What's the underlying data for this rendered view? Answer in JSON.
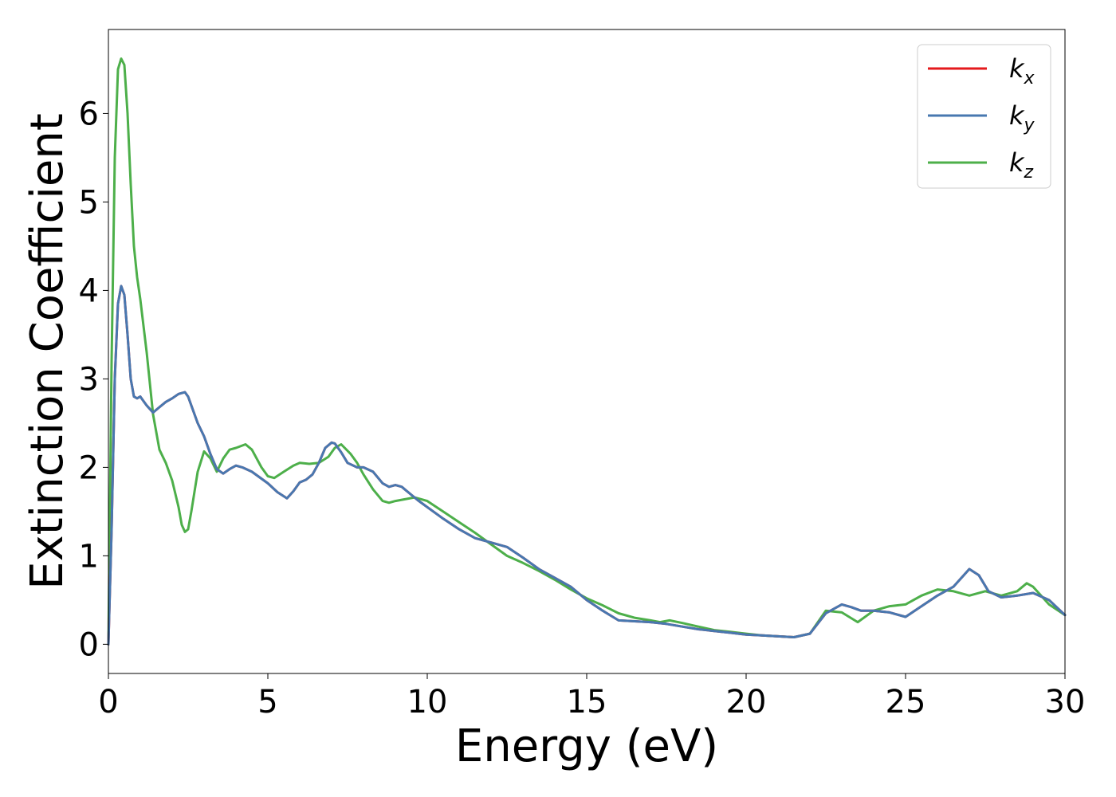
{
  "chart_data": {
    "type": "line",
    "title": "",
    "xlabel": "Energy (eV)",
    "ylabel": "Extinction Coefficient",
    "xlim": [
      0,
      30
    ],
    "ylim": [
      -0.33,
      6.95
    ],
    "xticks": [
      0,
      5,
      10,
      15,
      20,
      25,
      30
    ],
    "xtick_labels": [
      "0",
      "5",
      "10",
      "15",
      "20",
      "25",
      "30"
    ],
    "yticks": [
      0,
      1,
      2,
      3,
      4,
      5,
      6
    ],
    "ytick_labels": [
      "0",
      "1",
      "2",
      "3",
      "4",
      "5",
      "6"
    ],
    "grid": false,
    "legend_position": "top-right",
    "series": [
      {
        "name": "k",
        "subscript": "x",
        "color": "#e41a1c",
        "x": [
          0,
          0.1,
          0.2,
          0.3,
          0.4,
          0.5,
          0.6,
          0.7,
          0.8,
          0.9,
          1.0,
          1.1,
          1.2,
          1.4,
          1.6,
          1.8,
          2.0,
          2.2,
          2.4,
          2.5,
          2.6,
          2.8,
          3.0,
          3.2,
          3.4,
          3.6,
          3.8,
          4.0,
          4.2,
          4.5,
          5.0,
          5.3,
          5.6,
          5.8,
          6.0,
          6.2,
          6.4,
          6.6,
          6.8,
          7.0,
          7.1,
          7.3,
          7.5,
          7.8,
          8.0,
          8.3,
          8.6,
          8.8,
          9.0,
          9.2,
          9.4,
          9.7,
          10,
          10.5,
          11,
          11.5,
          12,
          12.5,
          13,
          13.5,
          14,
          14.5,
          15,
          15.5,
          16,
          16.5,
          17,
          17.5,
          18,
          18.5,
          19,
          19.5,
          20,
          20.5,
          21,
          21.5,
          22,
          22.5,
          23,
          23.3,
          23.6,
          24,
          24.5,
          25,
          25.5,
          26,
          26.5,
          27,
          27.3,
          27.6,
          28,
          28.5,
          29,
          29.5,
          30
        ],
        "values": [
          0,
          1.3,
          3.0,
          3.85,
          4.05,
          3.95,
          3.5,
          3.0,
          2.8,
          2.78,
          2.8,
          2.75,
          2.7,
          2.62,
          2.68,
          2.74,
          2.78,
          2.83,
          2.85,
          2.8,
          2.7,
          2.5,
          2.35,
          2.15,
          1.98,
          1.93,
          1.98,
          2.02,
          2.0,
          1.95,
          1.82,
          1.72,
          1.65,
          1.73,
          1.83,
          1.86,
          1.92,
          2.05,
          2.22,
          2.28,
          2.27,
          2.17,
          2.05,
          2.0,
          2.0,
          1.95,
          1.82,
          1.78,
          1.8,
          1.78,
          1.72,
          1.63,
          1.55,
          1.42,
          1.3,
          1.2,
          1.15,
          1.1,
          0.98,
          0.85,
          0.75,
          0.65,
          0.5,
          0.38,
          0.27,
          0.26,
          0.25,
          0.23,
          0.2,
          0.17,
          0.15,
          0.13,
          0.11,
          0.1,
          0.09,
          0.08,
          0.12,
          0.35,
          0.45,
          0.42,
          0.38,
          0.38,
          0.36,
          0.31,
          0.43,
          0.55,
          0.65,
          0.85,
          0.78,
          0.6,
          0.53,
          0.55,
          0.58,
          0.5,
          0.33
        ]
      },
      {
        "name": "k",
        "subscript": "y",
        "color": "#4878b0",
        "x": [
          0,
          0.1,
          0.2,
          0.3,
          0.4,
          0.5,
          0.6,
          0.7,
          0.8,
          0.9,
          1.0,
          1.1,
          1.2,
          1.4,
          1.6,
          1.8,
          2.0,
          2.2,
          2.4,
          2.5,
          2.6,
          2.8,
          3.0,
          3.2,
          3.4,
          3.6,
          3.8,
          4.0,
          4.2,
          4.5,
          5.0,
          5.3,
          5.6,
          5.8,
          6.0,
          6.2,
          6.4,
          6.6,
          6.8,
          7.0,
          7.1,
          7.3,
          7.5,
          7.8,
          8.0,
          8.3,
          8.6,
          8.8,
          9.0,
          9.2,
          9.4,
          9.7,
          10,
          10.5,
          11,
          11.5,
          12,
          12.5,
          13,
          13.5,
          14,
          14.5,
          15,
          15.5,
          16,
          16.5,
          17,
          17.5,
          18,
          18.5,
          19,
          19.5,
          20,
          20.5,
          21,
          21.5,
          22,
          22.5,
          23,
          23.3,
          23.6,
          24,
          24.5,
          25,
          25.5,
          26,
          26.5,
          27,
          27.3,
          27.6,
          28,
          28.5,
          29,
          29.5,
          30
        ],
        "values": [
          0,
          1.3,
          3.0,
          3.85,
          4.05,
          3.95,
          3.5,
          3.0,
          2.8,
          2.78,
          2.8,
          2.75,
          2.7,
          2.62,
          2.68,
          2.74,
          2.78,
          2.83,
          2.85,
          2.8,
          2.7,
          2.5,
          2.35,
          2.15,
          1.98,
          1.93,
          1.98,
          2.02,
          2.0,
          1.95,
          1.82,
          1.72,
          1.65,
          1.73,
          1.83,
          1.86,
          1.92,
          2.05,
          2.22,
          2.28,
          2.27,
          2.17,
          2.05,
          2.0,
          2.0,
          1.95,
          1.82,
          1.78,
          1.8,
          1.78,
          1.72,
          1.63,
          1.55,
          1.42,
          1.3,
          1.2,
          1.15,
          1.1,
          0.98,
          0.85,
          0.75,
          0.65,
          0.5,
          0.38,
          0.27,
          0.26,
          0.25,
          0.23,
          0.2,
          0.17,
          0.15,
          0.13,
          0.11,
          0.1,
          0.09,
          0.08,
          0.12,
          0.35,
          0.45,
          0.42,
          0.38,
          0.38,
          0.36,
          0.31,
          0.43,
          0.55,
          0.65,
          0.85,
          0.78,
          0.6,
          0.53,
          0.55,
          0.58,
          0.5,
          0.33
        ]
      },
      {
        "name": "k",
        "subscript": "z",
        "color": "#4daf4a",
        "x": [
          0,
          0.1,
          0.2,
          0.3,
          0.4,
          0.5,
          0.6,
          0.7,
          0.8,
          0.9,
          1.0,
          1.2,
          1.4,
          1.6,
          1.8,
          2.0,
          2.2,
          2.3,
          2.4,
          2.5,
          2.6,
          2.8,
          3.0,
          3.2,
          3.4,
          3.6,
          3.8,
          4.0,
          4.3,
          4.5,
          4.8,
          5.0,
          5.2,
          5.5,
          5.8,
          6.0,
          6.3,
          6.6,
          6.9,
          7.1,
          7.3,
          7.6,
          7.8,
          8.0,
          8.3,
          8.6,
          8.8,
          9.0,
          9.3,
          9.6,
          10,
          10.5,
          11,
          11.5,
          12,
          12.5,
          13,
          13.5,
          14,
          14.5,
          15,
          15.5,
          16,
          16.5,
          17,
          17.3,
          17.6,
          18,
          18.5,
          19,
          19.5,
          20,
          20.5,
          21,
          21.5,
          22,
          22.5,
          23,
          23.5,
          24,
          24.5,
          25,
          25.5,
          26,
          26.5,
          27,
          27.5,
          28,
          28.5,
          28.8,
          29,
          29.5,
          30
        ],
        "values": [
          0,
          3.2,
          5.5,
          6.5,
          6.62,
          6.55,
          6.0,
          5.2,
          4.5,
          4.15,
          3.9,
          3.3,
          2.6,
          2.2,
          2.05,
          1.85,
          1.55,
          1.35,
          1.27,
          1.3,
          1.5,
          1.95,
          2.18,
          2.1,
          1.95,
          2.1,
          2.2,
          2.22,
          2.26,
          2.2,
          2.0,
          1.9,
          1.88,
          1.95,
          2.02,
          2.05,
          2.04,
          2.05,
          2.12,
          2.22,
          2.26,
          2.15,
          2.05,
          1.92,
          1.75,
          1.62,
          1.6,
          1.62,
          1.64,
          1.66,
          1.62,
          1.5,
          1.38,
          1.26,
          1.13,
          1.0,
          0.92,
          0.83,
          0.73,
          0.62,
          0.52,
          0.44,
          0.35,
          0.3,
          0.27,
          0.25,
          0.27,
          0.24,
          0.2,
          0.16,
          0.14,
          0.12,
          0.1,
          0.09,
          0.08,
          0.12,
          0.38,
          0.36,
          0.25,
          0.38,
          0.43,
          0.45,
          0.55,
          0.62,
          0.6,
          0.55,
          0.6,
          0.55,
          0.6,
          0.69,
          0.65,
          0.45,
          0.33
        ]
      }
    ]
  }
}
